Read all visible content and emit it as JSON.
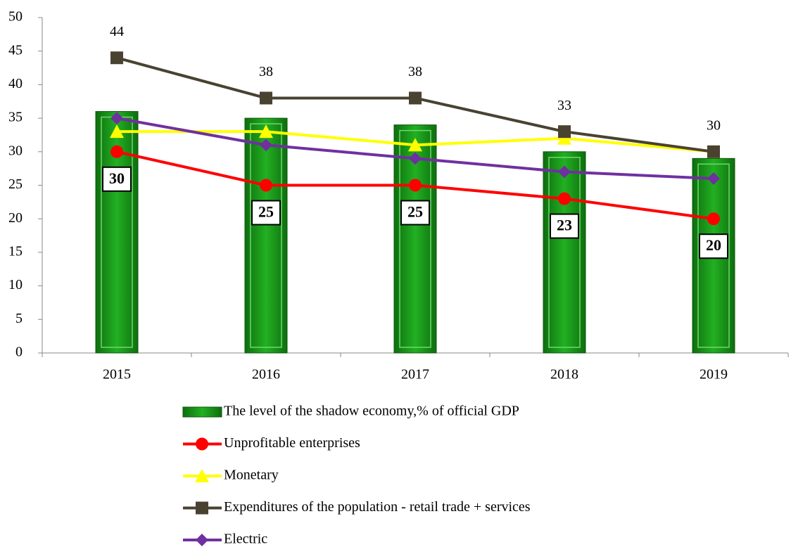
{
  "chart_data": {
    "type": "bar",
    "categories": [
      "2015",
      "2016",
      "2017",
      "2018",
      "2019"
    ],
    "ylim": [
      0,
      50
    ],
    "yticks": [
      0,
      5,
      10,
      15,
      20,
      25,
      30,
      35,
      40,
      45,
      50
    ],
    "legend": "bottom",
    "series": [
      {
        "name": "The level of the shadow economy,% of official GDP",
        "type": "bar",
        "color": "#1c9a1c",
        "values": [
          36,
          35,
          34,
          30,
          29
        ]
      },
      {
        "name": "Unprofitable enterprises",
        "type": "line",
        "marker": "circle",
        "color": "#ff0000",
        "values": [
          30,
          25,
          25,
          23,
          20
        ],
        "labels": "box"
      },
      {
        "name": "Monetary",
        "type": "line",
        "marker": "triangle",
        "color": "#ffff00",
        "values": [
          33,
          33,
          31,
          32,
          30
        ]
      },
      {
        "name": "Expenditures of the population - retail trade + services",
        "type": "line",
        "marker": "square",
        "color": "#4a4231",
        "values": [
          44,
          38,
          38,
          33,
          30
        ],
        "labels": "above"
      },
      {
        "name": "Electric",
        "type": "line",
        "marker": "diamond",
        "color": "#7030a0",
        "values": [
          35,
          31,
          29,
          27,
          26
        ]
      }
    ]
  }
}
